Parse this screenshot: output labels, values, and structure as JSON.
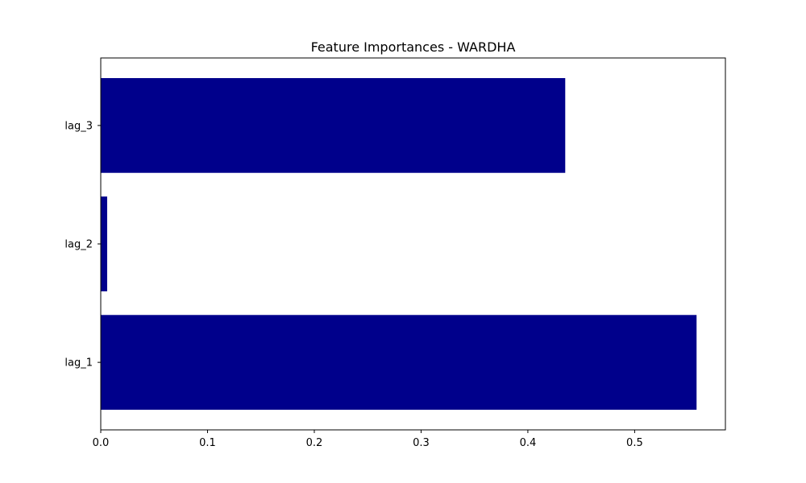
{
  "chart_data": {
    "type": "bar",
    "orientation": "horizontal",
    "title": "Feature Importances - WARDHA",
    "xlabel": "",
    "ylabel": "",
    "categories": [
      "lag_1",
      "lag_2",
      "lag_3"
    ],
    "values": [
      0.558,
      0.006,
      0.435
    ],
    "xlim": [
      0,
      0.585
    ],
    "xticks": [
      0.0,
      0.1,
      0.2,
      0.3,
      0.4,
      0.5
    ],
    "xtick_labels": [
      "0.0",
      "0.1",
      "0.2",
      "0.3",
      "0.4",
      "0.5"
    ],
    "grid": false,
    "legend": "none",
    "bar_color": "#00008b"
  }
}
